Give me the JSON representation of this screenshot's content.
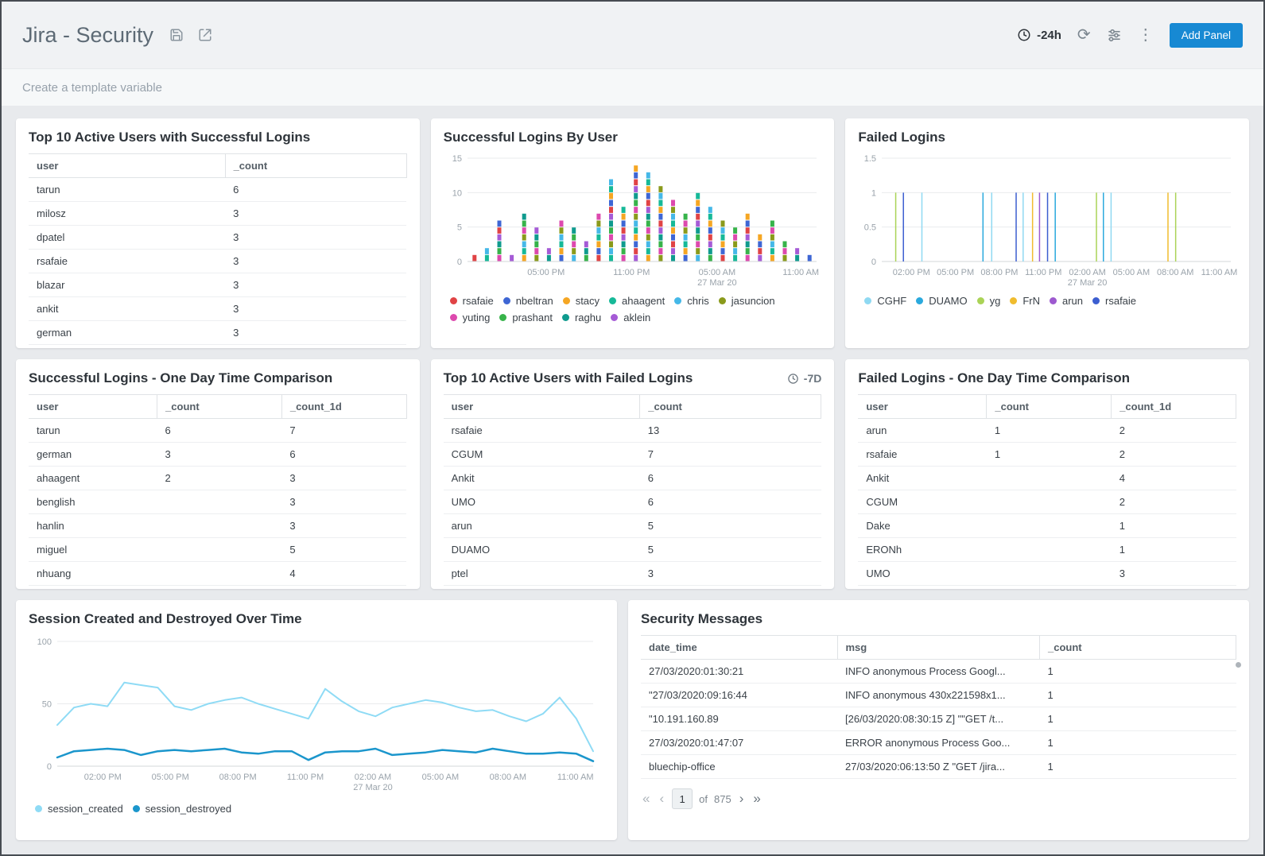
{
  "header": {
    "title": "Jira - Security",
    "time_range": "-24h",
    "add_panel": "Add Panel"
  },
  "template_bar": {
    "label": "Create a template variable"
  },
  "panels": {
    "top_successful": {
      "title": "Top 10 Active Users with Successful Logins",
      "columns": [
        "user",
        "_count"
      ],
      "widths": [
        "52%",
        "48%"
      ],
      "rows": [
        [
          "tarun",
          "6"
        ],
        [
          "milosz",
          "3"
        ],
        [
          "dpatel",
          "3"
        ],
        [
          "rsafaie",
          "3"
        ],
        [
          "blazar",
          "3"
        ],
        [
          "ankit",
          "3"
        ],
        [
          "german",
          "3"
        ]
      ]
    },
    "logins_by_user": {
      "title": "Successful Logins By User",
      "chart": {
        "type": "stacked-bar",
        "ylim": [
          0,
          15
        ],
        "yticks": [
          0,
          5,
          10,
          15
        ],
        "xticks": [
          {
            "x": 0.225,
            "label": "05:00 PM"
          },
          {
            "x": 0.47,
            "label": "11:00 PM"
          },
          {
            "x": 0.715,
            "label": "05:00 AM",
            "sub": "27 Mar 20"
          },
          {
            "x": 0.955,
            "label": "11:00 AM"
          }
        ],
        "bars": [
          1,
          2,
          6,
          1,
          7,
          5,
          2,
          6,
          5,
          3,
          7,
          12,
          8,
          14,
          13,
          11,
          9,
          7,
          10,
          8,
          6,
          5,
          7,
          4,
          6,
          3,
          2,
          1
        ],
        "legend": [
          {
            "label": "rsafaie",
            "color": "#e04345"
          },
          {
            "label": "nbeltran",
            "color": "#3e66d4"
          },
          {
            "label": "stacy",
            "color": "#f5a623"
          },
          {
            "label": "ahaagent",
            "color": "#16b998"
          },
          {
            "label": "chris",
            "color": "#45b8e8"
          },
          {
            "label": "jasuncion",
            "color": "#8a9a1b"
          },
          {
            "label": "yuting",
            "color": "#dd49ae"
          },
          {
            "label": "prashant",
            "color": "#37b34a"
          },
          {
            "label": "raghu",
            "color": "#0f9b8e"
          },
          {
            "label": "aklein",
            "color": "#a55bd6"
          }
        ]
      }
    },
    "failed_logins": {
      "title": "Failed Logins",
      "chart": {
        "type": "spike",
        "ylim": [
          0,
          1.5
        ],
        "yticks": [
          0,
          0.5,
          1,
          1.5
        ],
        "xticks": [
          {
            "x": 0.085,
            "label": "02:00 PM"
          },
          {
            "x": 0.211,
            "label": "05:00 PM"
          },
          {
            "x": 0.337,
            "label": "08:00 PM"
          },
          {
            "x": 0.463,
            "label": "11:00 PM"
          },
          {
            "x": 0.589,
            "label": "02:00 AM",
            "sub": "27 Mar 20"
          },
          {
            "x": 0.715,
            "label": "05:00 AM"
          },
          {
            "x": 0.841,
            "label": "08:00 AM"
          },
          {
            "x": 0.967,
            "label": "11:00 AM"
          }
        ],
        "spikes": [
          {
            "x": 0.04,
            "c": 2
          },
          {
            "x": 0.062,
            "c": 5
          },
          {
            "x": 0.115,
            "c": 0
          },
          {
            "x": 0.29,
            "c": 1
          },
          {
            "x": 0.315,
            "c": 0
          },
          {
            "x": 0.385,
            "c": 5
          },
          {
            "x": 0.405,
            "c": 0
          },
          {
            "x": 0.432,
            "c": 3
          },
          {
            "x": 0.452,
            "c": 4
          },
          {
            "x": 0.475,
            "c": 5
          },
          {
            "x": 0.497,
            "c": 1
          },
          {
            "x": 0.615,
            "c": 2
          },
          {
            "x": 0.635,
            "c": 1
          },
          {
            "x": 0.657,
            "c": 0
          },
          {
            "x": 0.82,
            "c": 3
          },
          {
            "x": 0.842,
            "c": 2
          }
        ],
        "legend": [
          {
            "label": "CGHF",
            "color": "#8fd9f2"
          },
          {
            "label": "DUAMO",
            "color": "#2aa9dd"
          },
          {
            "label": "yg",
            "color": "#aad356"
          },
          {
            "label": "FrN",
            "color": "#f0bc2e"
          },
          {
            "label": "arun",
            "color": "#9d59cf"
          },
          {
            "label": "rsafaie",
            "color": "#3c5ed0"
          }
        ]
      }
    },
    "successful_comparison": {
      "title": "Successful Logins - One Day Time Comparison",
      "columns": [
        "user",
        "_count",
        "_count_1d"
      ],
      "widths": [
        "34%",
        "33%",
        "33%"
      ],
      "rows": [
        [
          "tarun",
          "6",
          "7"
        ],
        [
          "german",
          "3",
          "6"
        ],
        [
          "ahaagent",
          "2",
          "3"
        ],
        [
          "benglish",
          "",
          "3"
        ],
        [
          "hanlin",
          "",
          "3"
        ],
        [
          "miguel",
          "",
          "5"
        ],
        [
          "nhuang",
          "",
          "4"
        ]
      ]
    },
    "top_failed": {
      "title": "Top 10 Active Users with Failed Logins",
      "time_badge": "-7D",
      "columns": [
        "user",
        "_count"
      ],
      "widths": [
        "52%",
        "48%"
      ],
      "rows": [
        [
          "rsafaie",
          "13"
        ],
        [
          "CGUM",
          "7"
        ],
        [
          "Ankit",
          "6"
        ],
        [
          "UMO",
          "6"
        ],
        [
          "arun",
          "5"
        ],
        [
          "DUAMO",
          "5"
        ],
        [
          "ptel",
          "3"
        ]
      ]
    },
    "failed_comparison": {
      "title": "Failed Logins - One Day Time Comparison",
      "columns": [
        "user",
        "_count",
        "_count_1d"
      ],
      "widths": [
        "34%",
        "33%",
        "33%"
      ],
      "rows": [
        [
          "arun",
          "1",
          "2"
        ],
        [
          "rsafaie",
          "1",
          "2"
        ],
        [
          "Ankit",
          "",
          "4"
        ],
        [
          "CGUM",
          "",
          "2"
        ],
        [
          "Dake",
          "",
          "1"
        ],
        [
          "ERONh",
          "",
          "1"
        ],
        [
          "UMO",
          "",
          "3"
        ]
      ]
    },
    "sessions": {
      "title": "Session Created and Destroyed Over Time",
      "chart": {
        "type": "line",
        "ylim": [
          0,
          100
        ],
        "yticks": [
          0,
          50,
          100
        ],
        "xticks": [
          {
            "x": 0.085,
            "label": "02:00 PM"
          },
          {
            "x": 0.211,
            "label": "05:00 PM"
          },
          {
            "x": 0.337,
            "label": "08:00 PM"
          },
          {
            "x": 0.463,
            "label": "11:00 PM"
          },
          {
            "x": 0.589,
            "label": "02:00 AM",
            "sub": "27 Mar 20"
          },
          {
            "x": 0.715,
            "label": "05:00 AM"
          },
          {
            "x": 0.841,
            "label": "08:00 AM"
          },
          {
            "x": 0.967,
            "label": "11:00 AM"
          }
        ],
        "series": [
          {
            "name": "session_created",
            "color": "#8fdbf5",
            "width": 2,
            "values": [
              33,
              47,
              50,
              48,
              67,
              65,
              63,
              48,
              45,
              50,
              53,
              55,
              50,
              46,
              42,
              38,
              62,
              52,
              44,
              40,
              47,
              50,
              53,
              51,
              47,
              44,
              45,
              40,
              36,
              42,
              55,
              38,
              12
            ]
          },
          {
            "name": "session_destroyed",
            "color": "#1b96cc",
            "width": 2.5,
            "values": [
              7,
              12,
              13,
              14,
              13,
              9,
              12,
              13,
              12,
              13,
              14,
              11,
              10,
              12,
              12,
              5,
              11,
              12,
              12,
              14,
              9,
              10,
              11,
              13,
              12,
              11,
              14,
              12,
              10,
              10,
              11,
              10,
              4
            ]
          }
        ],
        "legend": [
          {
            "label": "session_created",
            "color": "#8fdbf5"
          },
          {
            "label": "session_destroyed",
            "color": "#1b96cc"
          }
        ]
      }
    },
    "security_messages": {
      "title": "Security Messages",
      "columns": [
        "date_time",
        "msg",
        "_count"
      ],
      "widths": [
        "33%",
        "34%",
        "33%"
      ],
      "rows": [
        [
          "27/03/2020:01:30:21",
          "INFO anonymous Process Googl...",
          "1"
        ],
        [
          "\"27/03/2020:09:16:44",
          "INFO anonymous 430x221598x1...",
          "1"
        ],
        [
          "\"10.191.160.89",
          "[26/03/2020:08:30:15 Z] \"\"GET /t...",
          "1"
        ],
        [
          "27/03/2020:01:47:07",
          "ERROR anonymous Process Goo...",
          "1"
        ],
        [
          "bluechip-office",
          "27/03/2020:06:13:50 Z \"GET /jira...",
          "1"
        ]
      ],
      "pagination": {
        "page": "1",
        "of_label": "of",
        "total": "875"
      }
    }
  }
}
